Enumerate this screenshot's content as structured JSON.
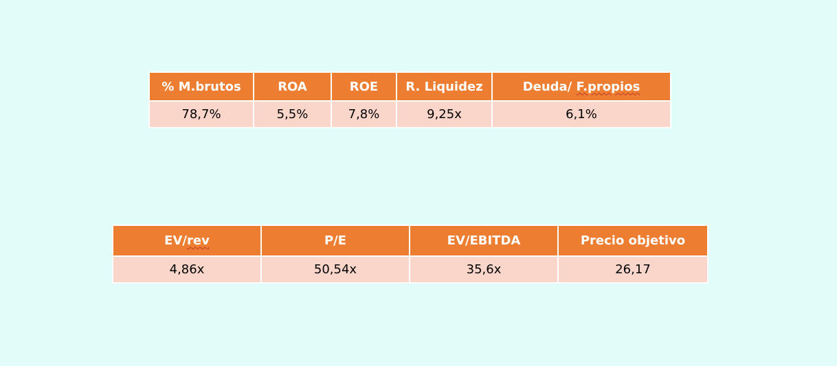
{
  "ratios_table": {
    "headers": [
      "% M.brutos",
      "ROA",
      "ROE",
      "R. Liquidez",
      "Deuda/",
      "F.propios"
    ],
    "values": [
      "78,7%",
      "5,5%",
      "7,8%",
      "9,25x",
      "6,1%"
    ]
  },
  "valuation_table": {
    "headers": [
      "EV/",
      "rev",
      "P/E",
      "EV/EBITDA",
      "Precio objetivo"
    ],
    "values": [
      "4,86x",
      "50,54x",
      "35,6x",
      "26,17"
    ]
  },
  "colors": {
    "page_background": "#e0fdf9",
    "header_fill": "#ed7d31",
    "cell_fill": "#f9d5ca",
    "header_text": "#ffffff"
  }
}
